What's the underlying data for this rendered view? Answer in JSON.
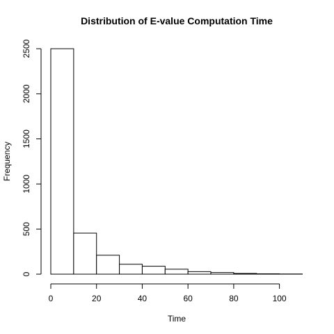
{
  "chart_data": {
    "type": "bar",
    "title": "Distribution of E-value Computation Time",
    "xlabel": "Time",
    "ylabel": "Frequency",
    "bin_edges": [
      0,
      10,
      20,
      30,
      40,
      50,
      60,
      70,
      80,
      90,
      100,
      110
    ],
    "values": [
      2500,
      455,
      210,
      110,
      88,
      55,
      28,
      18,
      8,
      4,
      2
    ],
    "xlim": [
      0,
      110
    ],
    "ylim": [
      0,
      2500
    ],
    "x_ticks": [
      0,
      20,
      40,
      60,
      80,
      100
    ],
    "y_ticks": [
      0,
      500,
      1000,
      1500,
      2000,
      2500
    ],
    "x_tick_labels": [
      "0",
      "20",
      "40",
      "60",
      "80",
      "100"
    ],
    "y_tick_labels": [
      "0",
      "500",
      "1000",
      "1500",
      "2000",
      "2500"
    ],
    "grid": false,
    "legend": "none"
  }
}
